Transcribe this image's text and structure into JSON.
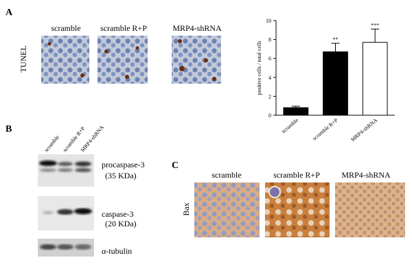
{
  "panel_a": {
    "label": "A",
    "row_label": "TUNEL",
    "image_labels": [
      "scramble",
      "scramble R+P",
      "MRP4-shRNA"
    ]
  },
  "chart_data": {
    "type": "bar",
    "ylabel": "positive cells / total cells",
    "categories": [
      "scramble",
      "scramble R+P",
      "MRP4-shRNA"
    ],
    "values": [
      0.8,
      6.7,
      7.7
    ],
    "errors": [
      0.15,
      0.9,
      1.4
    ],
    "colors": [
      "#000000",
      "#000000",
      "#ffffff"
    ],
    "annotations": [
      null,
      "**",
      "***"
    ],
    "ylim": [
      0,
      10
    ],
    "yticks": [
      0,
      2,
      4,
      6,
      8,
      10
    ],
    "grid": false
  },
  "panel_b": {
    "label": "B",
    "lane_labels": [
      "scramble",
      "scramble R+P",
      "MRP4-shRNA"
    ],
    "bands": [
      {
        "name": "procaspase-3",
        "size": "(35 KDa)"
      },
      {
        "name": "caspase-3",
        "size": "(20 KDa)"
      },
      {
        "name": "α-tubulin"
      }
    ]
  },
  "panel_c": {
    "label": "C",
    "row_label": "Bax",
    "image_labels": [
      "scramble",
      "scramble R+P",
      "MRP4-shRNA"
    ]
  }
}
